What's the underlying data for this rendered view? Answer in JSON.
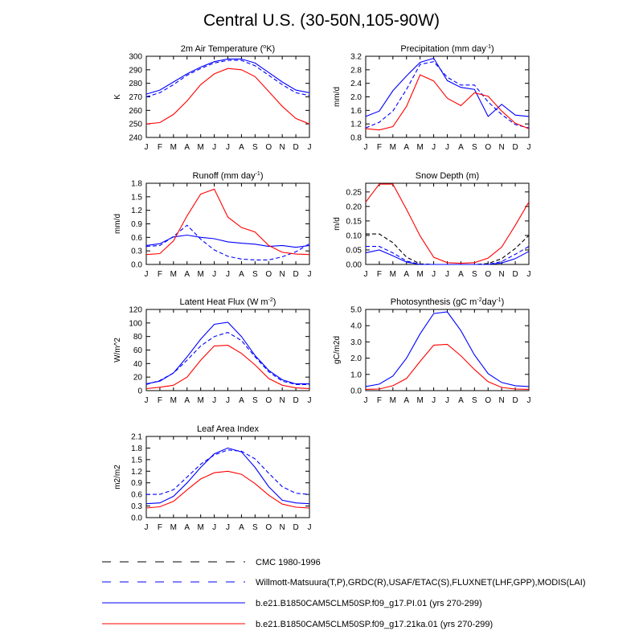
{
  "figure_title": "Central U.S. (30-50N,105-90W)",
  "months": [
    "J",
    "F",
    "M",
    "A",
    "M",
    "J",
    "J",
    "A",
    "S",
    "O",
    "N",
    "D",
    "J"
  ],
  "legend": [
    {
      "label": "CMC 1980-1996",
      "color": "#000000",
      "dash": true
    },
    {
      "label": "Willmott-Matsuura(T,P),GRDC(R),USAF/ETAC(S),FLUXNET(LHF,GPP),MODIS(LAI)",
      "color": "#0000ff",
      "dash": true
    },
    {
      "label": "b.e21.B1850CAM5CLM50SP.f09_g17.PI.01 (yrs 270-299)",
      "color": "#0000ff",
      "dash": false
    },
    {
      "label": "b.e21.B1850CAM5CLM50SP.f09_g17.21ka.01 (yrs 270-299)",
      "color": "#ff0000",
      "dash": false
    }
  ],
  "chart_data": [
    {
      "type": "line",
      "title": "2m Air Temperature (",
      "title_sup": "o",
      "title_end": "K)",
      "ylabel": "K",
      "ylim": [
        240,
        300
      ],
      "yticks": [
        240,
        250,
        260,
        270,
        280,
        290,
        300
      ],
      "x": [
        "J",
        "F",
        "M",
        "A",
        "M",
        "J",
        "J",
        "A",
        "S",
        "O",
        "N",
        "D",
        "J"
      ],
      "series": [
        {
          "color": "#0000ff",
          "dash": false,
          "values": [
            272,
            275,
            281,
            287,
            292,
            296,
            298,
            298,
            295,
            288,
            281,
            275,
            273
          ]
        },
        {
          "color": "#0000ff",
          "dash": true,
          "values": [
            270,
            273,
            279,
            286,
            291,
            295,
            297,
            297,
            293,
            286,
            279,
            273,
            271
          ]
        },
        {
          "color": "#ff0000",
          "dash": false,
          "values": [
            250,
            251,
            257,
            267,
            279,
            287,
            291,
            290,
            285,
            274,
            263,
            254,
            250
          ]
        }
      ]
    },
    {
      "type": "line",
      "title": "Precipitation (mm day",
      "title_sup": "-1",
      "title_end": ")",
      "ylabel": "mm/d",
      "ylim": [
        0.8,
        3.2
      ],
      "yticks": [
        0.8,
        1.2,
        1.6,
        2.0,
        2.4,
        2.8,
        3.2
      ],
      "x": [
        "J",
        "F",
        "M",
        "A",
        "M",
        "J",
        "J",
        "A",
        "S",
        "O",
        "N",
        "D",
        "J"
      ],
      "series": [
        {
          "color": "#0000ff",
          "dash": false,
          "values": [
            1.42,
            1.58,
            2.18,
            2.62,
            3.02,
            3.14,
            2.48,
            2.28,
            2.22,
            1.42,
            1.78,
            1.46,
            1.42
          ]
        },
        {
          "color": "#0000ff",
          "dash": true,
          "values": [
            1.08,
            1.25,
            1.58,
            2.22,
            2.96,
            3.04,
            2.58,
            2.35,
            2.35,
            1.85,
            1.48,
            1.18,
            1.08
          ]
        },
        {
          "color": "#ff0000",
          "dash": false,
          "values": [
            1.06,
            1.02,
            1.12,
            1.72,
            2.65,
            2.47,
            1.96,
            1.74,
            2.12,
            2.02,
            1.58,
            1.22,
            1.06
          ]
        }
      ]
    },
    {
      "type": "line",
      "title": "Runoff (mm day",
      "title_sup": "-1",
      "title_end": ")",
      "ylabel": "mm/d",
      "ylim": [
        0,
        1.8
      ],
      "yticks": [
        0.0,
        0.3,
        0.6,
        0.9,
        1.2,
        1.5,
        1.8
      ],
      "x": [
        "J",
        "F",
        "M",
        "A",
        "M",
        "J",
        "J",
        "A",
        "S",
        "O",
        "N",
        "D",
        "J"
      ],
      "series": [
        {
          "color": "#0000ff",
          "dash": false,
          "values": [
            0.42,
            0.46,
            0.61,
            0.65,
            0.6,
            0.57,
            0.5,
            0.47,
            0.45,
            0.4,
            0.42,
            0.38,
            0.42
          ]
        },
        {
          "color": "#0000ff",
          "dash": true,
          "values": [
            0.4,
            0.42,
            0.62,
            0.87,
            0.56,
            0.32,
            0.18,
            0.12,
            0.1,
            0.1,
            0.17,
            0.28,
            0.46
          ]
        },
        {
          "color": "#ff0000",
          "dash": false,
          "values": [
            0.22,
            0.24,
            0.52,
            1.08,
            1.56,
            1.67,
            1.05,
            0.82,
            0.72,
            0.42,
            0.27,
            0.23,
            0.22
          ]
        }
      ]
    },
    {
      "type": "line",
      "title": "Snow Depth (m)",
      "title_sup": "",
      "title_end": "",
      "ylabel": "m/d",
      "ylim": [
        0,
        0.28
      ],
      "yticks": [
        0.0,
        0.05,
        0.1,
        0.15,
        0.2,
        0.25
      ],
      "x": [
        "J",
        "F",
        "M",
        "A",
        "M",
        "J",
        "J",
        "A",
        "S",
        "O",
        "N",
        "D",
        "J"
      ],
      "series": [
        {
          "color": "#000000",
          "dash": true,
          "values": [
            0.105,
            0.105,
            0.075,
            0.025,
            0.002,
            0.0,
            0.0,
            0.0,
            0.0,
            0.003,
            0.02,
            0.055,
            0.1
          ]
        },
        {
          "color": "#0000ff",
          "dash": true,
          "values": [
            0.062,
            0.062,
            0.04,
            0.012,
            0.0,
            0.0,
            0.0,
            0.0,
            0.0,
            0.0,
            0.01,
            0.035,
            0.062
          ]
        },
        {
          "color": "#0000ff",
          "dash": false,
          "values": [
            0.04,
            0.05,
            0.03,
            0.008,
            0.0,
            0.0,
            0.0,
            0.0,
            0.0,
            0.0,
            0.005,
            0.02,
            0.045
          ]
        },
        {
          "color": "#ff0000",
          "dash": false,
          "values": [
            0.215,
            0.277,
            0.277,
            0.19,
            0.098,
            0.025,
            0.006,
            0.004,
            0.006,
            0.022,
            0.06,
            0.135,
            0.215
          ]
        }
      ]
    },
    {
      "type": "line",
      "title": "Latent Heat Flux (W m",
      "title_sup": "-2",
      "title_end": ")",
      "ylabel": "W/m^2",
      "ylim": [
        0,
        120
      ],
      "yticks": [
        0,
        20,
        40,
        60,
        80,
        100,
        120
      ],
      "x": [
        "J",
        "F",
        "M",
        "A",
        "M",
        "J",
        "J",
        "A",
        "S",
        "O",
        "N",
        "D",
        "J"
      ],
      "series": [
        {
          "color": "#0000ff",
          "dash": false,
          "values": [
            10,
            14,
            26,
            50,
            76,
            98,
            101,
            80,
            52,
            30,
            16,
            10,
            10
          ]
        },
        {
          "color": "#0000ff",
          "dash": true,
          "values": [
            9,
            15,
            26,
            45,
            66,
            80,
            86,
            74,
            50,
            28,
            14,
            9,
            9
          ]
        },
        {
          "color": "#ff0000",
          "dash": false,
          "values": [
            3,
            5,
            8,
            20,
            45,
            66,
            67,
            55,
            38,
            18,
            8,
            4,
            3
          ]
        }
      ]
    },
    {
      "type": "line",
      "title": "Photosynthesis (gC m",
      "title_sup": "-2",
      "title_end": "day",
      "title_sup2": "-1",
      "title_end2": ")",
      "ylabel": "gC/m2d",
      "ylim": [
        0,
        5
      ],
      "yticks": [
        0.0,
        1.0,
        2.0,
        3.0,
        4.0,
        5.0
      ],
      "x": [
        "J",
        "F",
        "M",
        "A",
        "M",
        "J",
        "J",
        "A",
        "S",
        "O",
        "N",
        "D",
        "J"
      ],
      "series": [
        {
          "color": "#0000ff",
          "dash": false,
          "values": [
            0.25,
            0.4,
            0.9,
            2.0,
            3.5,
            4.75,
            4.85,
            3.7,
            2.2,
            1.05,
            0.5,
            0.3,
            0.25
          ]
        },
        {
          "color": "#ff0000",
          "dash": false,
          "values": [
            0.08,
            0.1,
            0.3,
            0.75,
            1.8,
            2.8,
            2.85,
            2.15,
            1.3,
            0.55,
            0.2,
            0.1,
            0.08
          ]
        }
      ]
    },
    {
      "type": "line",
      "title": "Leaf Area Index",
      "title_sup": "",
      "title_end": "",
      "ylabel": "m2/m2",
      "ylim": [
        0,
        2.1
      ],
      "yticks": [
        0.0,
        0.3,
        0.6,
        0.9,
        1.2,
        1.5,
        1.8,
        2.1
      ],
      "x": [
        "J",
        "F",
        "M",
        "A",
        "M",
        "J",
        "J",
        "A",
        "S",
        "O",
        "N",
        "D",
        "J"
      ],
      "series": [
        {
          "color": "#0000ff",
          "dash": false,
          "values": [
            0.36,
            0.38,
            0.55,
            0.9,
            1.3,
            1.65,
            1.8,
            1.7,
            1.3,
            0.8,
            0.45,
            0.38,
            0.36
          ]
        },
        {
          "color": "#0000ff",
          "dash": true,
          "values": [
            0.6,
            0.6,
            0.72,
            1.05,
            1.38,
            1.62,
            1.75,
            1.72,
            1.52,
            1.15,
            0.8,
            0.63,
            0.6
          ]
        },
        {
          "color": "#ff0000",
          "dash": false,
          "values": [
            0.25,
            0.28,
            0.42,
            0.72,
            1.0,
            1.16,
            1.2,
            1.12,
            0.88,
            0.58,
            0.35,
            0.27,
            0.25
          ]
        }
      ]
    }
  ]
}
